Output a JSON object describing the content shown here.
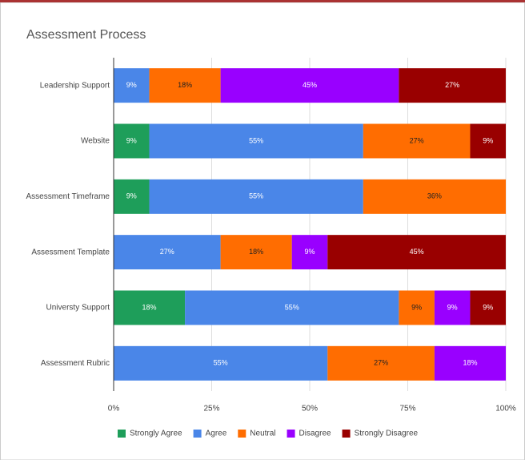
{
  "chart_data": {
    "type": "stacked-bar-horizontal",
    "title": "Assessment Process",
    "categories": [
      "Leadership Support",
      "Website",
      "Assessment Timeframe",
      "Assessment Template",
      "Universty Support",
      "Assessment Rubric"
    ],
    "series": [
      {
        "name": "Strongly Agree",
        "color": "#1e9e5a",
        "values": [
          0,
          9.09,
          9.09,
          0,
          18.18,
          0
        ],
        "value_labels": [
          null,
          "9%",
          "9%",
          null,
          "18%",
          null
        ]
      },
      {
        "name": "Agree",
        "color": "#4a86e8",
        "values": [
          9.09,
          54.55,
          54.55,
          27.27,
          54.55,
          54.55
        ],
        "value_labels": [
          "9%",
          "55%",
          "55%",
          "27%",
          "55%",
          "55%"
        ]
      },
      {
        "name": "Neutral",
        "color": "#ff6d01",
        "values": [
          18.18,
          27.27,
          36.36,
          18.18,
          9.09,
          27.27
        ],
        "value_labels": [
          "18%",
          "27%",
          "36%",
          "18%",
          "9%",
          "27%"
        ]
      },
      {
        "name": "Disagree",
        "color": "#9900ff",
        "values": [
          45.45,
          0,
          0,
          9.09,
          9.09,
          18.18
        ],
        "value_labels": [
          "45%",
          null,
          null,
          "9%",
          "9%",
          "18%"
        ]
      },
      {
        "name": "Strongly Disagree",
        "color": "#990000",
        "values": [
          27.27,
          9.09,
          0,
          45.45,
          9.09,
          0
        ],
        "value_labels": [
          "27%",
          "9%",
          null,
          "45%",
          "9%",
          null
        ]
      }
    ],
    "xlim": [
      0,
      100
    ],
    "xticks": [
      {
        "value": 0,
        "label": "0%"
      },
      {
        "value": 25,
        "label": "25%"
      },
      {
        "value": 50,
        "label": "50%"
      },
      {
        "value": 75,
        "label": "75%"
      },
      {
        "value": 100,
        "label": "100%"
      }
    ],
    "grid": true,
    "legend": "bottom"
  }
}
